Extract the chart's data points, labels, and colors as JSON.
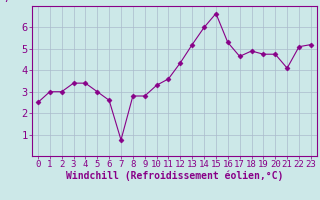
{
  "x": [
    0,
    1,
    2,
    3,
    4,
    5,
    6,
    7,
    8,
    9,
    10,
    11,
    12,
    13,
    14,
    15,
    16,
    17,
    18,
    19,
    20,
    21,
    22,
    23
  ],
  "y": [
    2.5,
    3.0,
    3.0,
    3.4,
    3.4,
    3.0,
    2.6,
    0.75,
    2.8,
    2.8,
    3.3,
    3.6,
    4.35,
    5.2,
    6.0,
    6.65,
    5.3,
    4.65,
    4.9,
    4.75,
    4.75,
    4.1,
    5.1,
    5.2
  ],
  "line_color": "#880088",
  "marker": "D",
  "marker_size": 2.5,
  "bg_color": "#cce8e8",
  "grid_color": "#aabbcc",
  "xlabel": "Windchill (Refroidissement éolien,°C)",
  "xlabel_color": "#880088",
  "ylim": [
    0,
    7
  ],
  "xlim": [
    -0.5,
    23.5
  ],
  "yticks": [
    1,
    2,
    3,
    4,
    5,
    6
  ],
  "ytick_labels": [
    "1",
    "2",
    "3",
    "4",
    "5",
    "6"
  ],
  "xtick_labels": [
    "0",
    "1",
    "2",
    "3",
    "4",
    "5",
    "6",
    "7",
    "8",
    "9",
    "10",
    "11",
    "12",
    "13",
    "14",
    "15",
    "16",
    "17",
    "18",
    "19",
    "20",
    "21",
    "22",
    "23"
  ],
  "tick_color": "#880088",
  "spine_color": "#880088",
  "font_size": 6.5,
  "xlabel_fontsize": 7.0,
  "ytick_fontsize": 7.5
}
